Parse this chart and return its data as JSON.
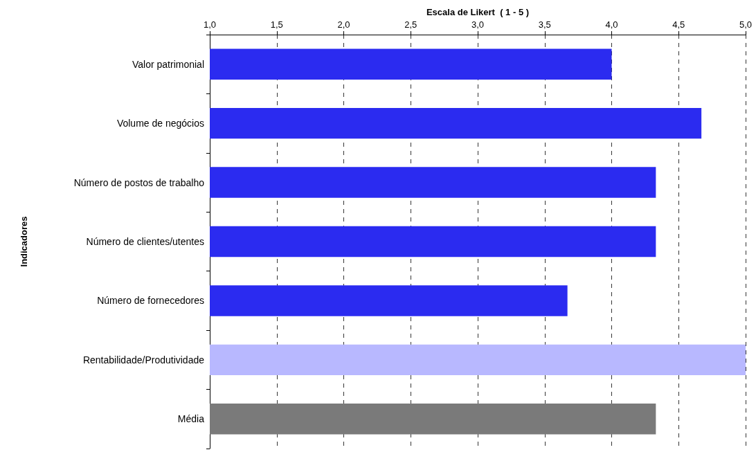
{
  "chart_data": {
    "type": "bar",
    "orientation": "horizontal",
    "xlabel": "Escala de Likert  ( 1 - 5 )",
    "ylabel": "Indicadores",
    "categories": [
      "Valor patrimonial",
      "Volume de negócios",
      "Número de postos de trabalho",
      "Número de clientes/utentes",
      "Número de fornecedores",
      "Rentabilidade/Produtividade",
      "Média"
    ],
    "values": [
      4.0,
      4.67,
      4.33,
      4.33,
      3.67,
      5.0,
      4.33
    ],
    "colors": [
      "#2b2bf0",
      "#2b2bf0",
      "#2b2bf0",
      "#2b2bf0",
      "#2b2bf0",
      "#b8b8ff",
      "#7a7a7a"
    ],
    "xlim": [
      1,
      5
    ],
    "xticks": [
      {
        "value": 1,
        "label": "1,0"
      },
      {
        "value": 1.5,
        "label": "1,5"
      },
      {
        "value": 2,
        "label": "2,0"
      },
      {
        "value": 2.5,
        "label": "2,5"
      },
      {
        "value": 3,
        "label": "3,0"
      },
      {
        "value": 3.5,
        "label": "3,5"
      },
      {
        "value": 4,
        "label": "4,0"
      },
      {
        "value": 4.5,
        "label": "4,5"
      },
      {
        "value": 5,
        "label": "5,0"
      }
    ],
    "grid": "x"
  }
}
